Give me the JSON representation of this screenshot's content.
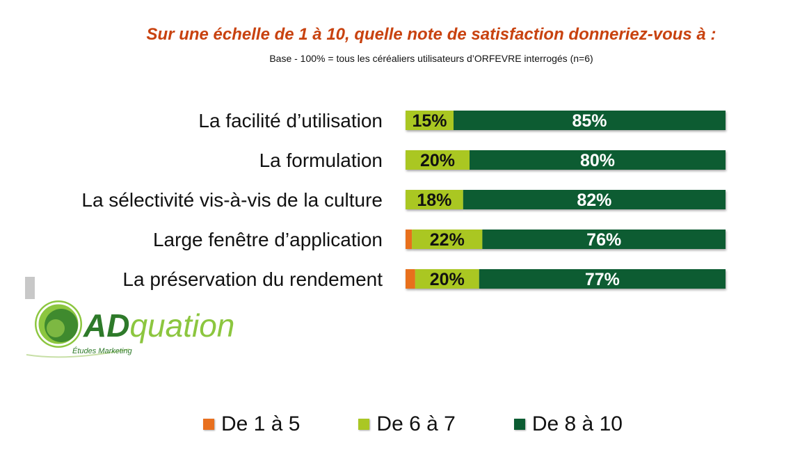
{
  "chart_data": {
    "type": "bar",
    "orientation": "horizontal",
    "stacked": true,
    "title": "Sur une échelle de 1 à 10, quelle note de satisfaction donneriez-vous à :",
    "subtitle": "Base - 100% = tous les céréaliers utilisateurs d’ORFEVRE interrogés (n=6)",
    "categories": [
      "La facilité d’utilisation",
      "La formulation",
      "La sélectivité vis-à-vis de la culture",
      "Large fenêtre d’application",
      "La préservation du rendement"
    ],
    "series": [
      {
        "name": "De 1 à 5",
        "color": "#e8701f",
        "values": [
          0,
          0,
          0,
          2,
          3
        ],
        "labels": [
          "",
          "",
          "",
          "",
          ""
        ]
      },
      {
        "name": "De 6 à 7",
        "color": "#aac724",
        "values": [
          15,
          20,
          18,
          22,
          20
        ],
        "labels": [
          "15%",
          "20%",
          "18%",
          "22%",
          "20%"
        ]
      },
      {
        "name": "De 8 à 10",
        "color": "#0b5c32",
        "values": [
          85,
          80,
          82,
          76,
          77
        ],
        "labels": [
          "85%",
          "80%",
          "82%",
          "76%",
          "77%"
        ]
      }
    ],
    "xlim": [
      0,
      100
    ],
    "grid": false,
    "legend_position": "bottom"
  },
  "logo": {
    "name": "ADquation",
    "tagline": "Études Marketing"
  }
}
